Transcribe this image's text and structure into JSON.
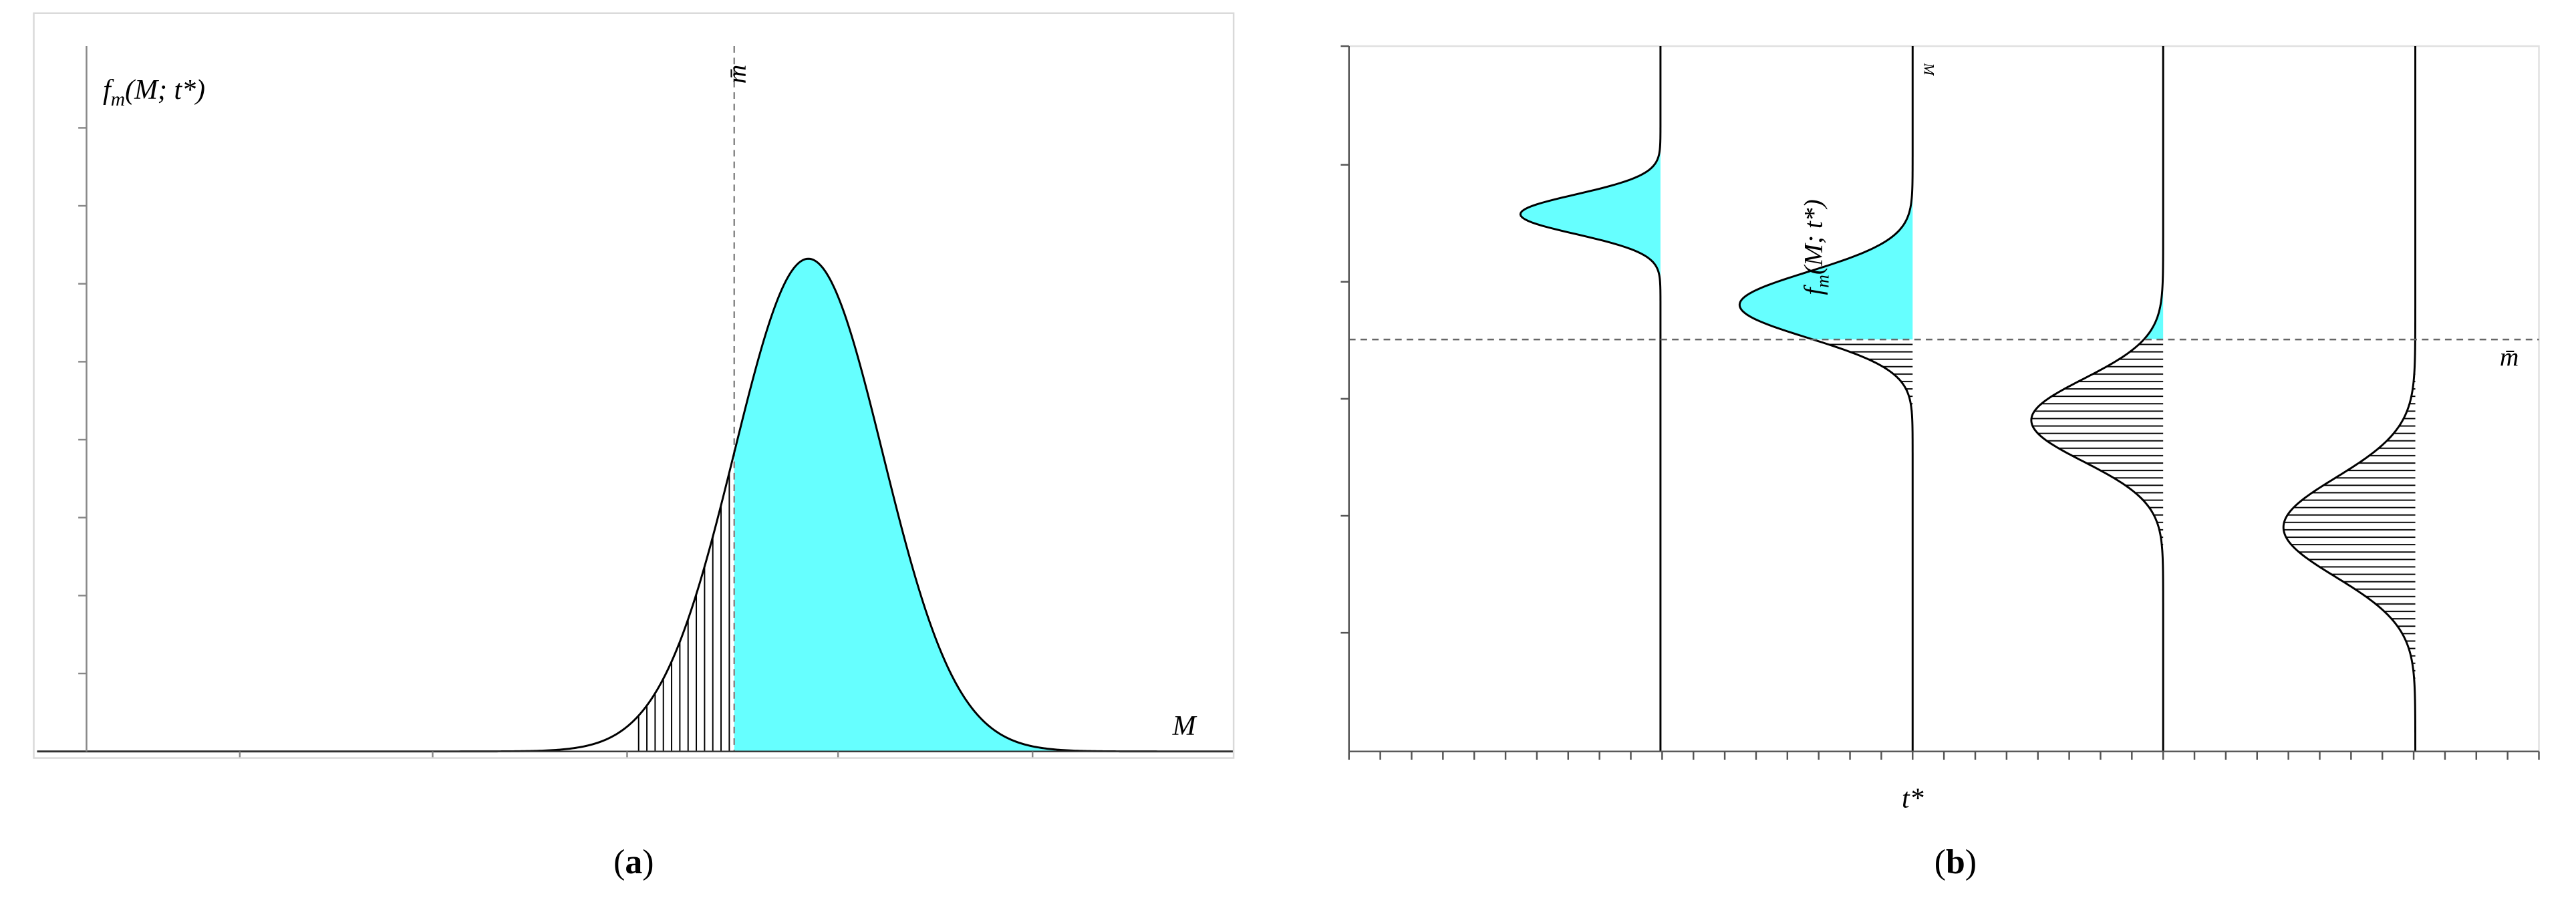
{
  "panel_a": {
    "label": {
      "open": "(",
      "letter": "a",
      "close": ")"
    },
    "y_label": {
      "main": "f",
      "sub": "m",
      "args": "(M; t*)"
    },
    "threshold_label": "m̄",
    "x_label": "M"
  },
  "panel_b": {
    "label": {
      "open": "(",
      "letter": "b",
      "close": ")"
    },
    "curve_label": {
      "main": "f",
      "sub": "m",
      "args": "(M; t*)"
    },
    "threshold_label": "m̄",
    "x_label": "t*",
    "y_label": "M"
  }
}
